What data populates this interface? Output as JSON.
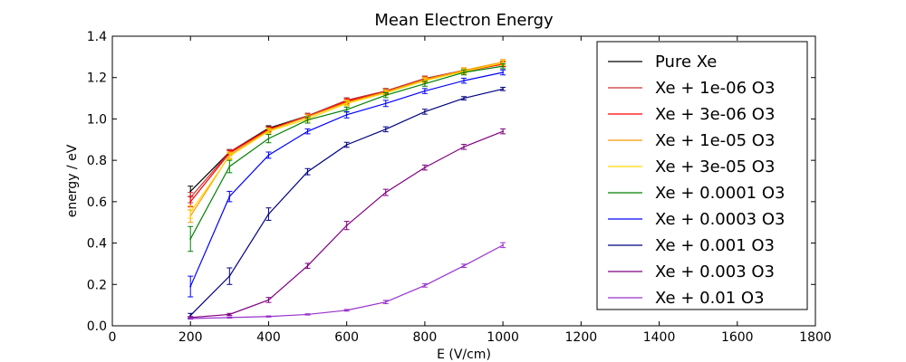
{
  "chart_data": {
    "type": "line",
    "title": "Mean Electron Energy",
    "xlabel": "E (V/cm)",
    "ylabel": "energy / eV",
    "xlim": [
      0,
      1800
    ],
    "ylim": [
      0.0,
      1.4
    ],
    "x_ticks": [
      "0",
      "200",
      "400",
      "600",
      "800",
      "1000",
      "1200",
      "1400",
      "1600",
      "1800"
    ],
    "y_ticks": [
      "0.0",
      "0.2",
      "0.4",
      "0.6",
      "0.8",
      "1.0",
      "1.2",
      "1.4"
    ],
    "grid": false,
    "legend_position": "top-right",
    "x": [
      200,
      300,
      400,
      500,
      600,
      700,
      800,
      900,
      1000
    ],
    "series": [
      {
        "name": "Pure Xe",
        "color": "#000000",
        "values": [
          0.65,
          0.84,
          0.955,
          1.015,
          1.09,
          1.135,
          1.195,
          1.235,
          1.265
        ],
        "errors": [
          0.025,
          0.012,
          0.012,
          0.012,
          0.012,
          0.012,
          0.012,
          0.012,
          0.012
        ]
      },
      {
        "name": "Xe + 1e-06 O3",
        "color": "#cc3333",
        "values": [
          0.62,
          0.84,
          0.95,
          1.015,
          1.09,
          1.135,
          1.195,
          1.235,
          1.265
        ],
        "errors": [
          0.025,
          0.012,
          0.012,
          0.012,
          0.012,
          0.012,
          0.012,
          0.012,
          0.012
        ]
      },
      {
        "name": "Xe + 3e-06 O3",
        "color": "#ff0000",
        "values": [
          0.6,
          0.835,
          0.95,
          1.01,
          1.085,
          1.13,
          1.19,
          1.23,
          1.265
        ],
        "errors": [
          0.025,
          0.012,
          0.012,
          0.012,
          0.012,
          0.012,
          0.012,
          0.012,
          0.012
        ]
      },
      {
        "name": "Xe + 1e-05 O3",
        "color": "#ff9900",
        "values": [
          0.53,
          0.825,
          0.945,
          1.01,
          1.08,
          1.13,
          1.19,
          1.235,
          1.275
        ],
        "errors": [
          0.03,
          0.015,
          0.012,
          0.012,
          0.012,
          0.012,
          0.012,
          0.012,
          0.012
        ]
      },
      {
        "name": "Xe + 3e-05 O3",
        "color": "#ffd700",
        "values": [
          0.55,
          0.82,
          0.94,
          1.0,
          1.075,
          1.125,
          1.185,
          1.23,
          1.27
        ],
        "errors": [
          0.03,
          0.015,
          0.012,
          0.012,
          0.012,
          0.012,
          0.012,
          0.012,
          0.012
        ]
      },
      {
        "name": "Xe + 0.0001 O3",
        "color": "#008000",
        "values": [
          0.42,
          0.77,
          0.905,
          0.995,
          1.045,
          1.115,
          1.17,
          1.225,
          1.255
        ],
        "errors": [
          0.06,
          0.03,
          0.02,
          0.015,
          0.012,
          0.012,
          0.012,
          0.012,
          0.012
        ]
      },
      {
        "name": "Xe + 0.0003 O3",
        "color": "#0000ff",
        "values": [
          0.19,
          0.625,
          0.825,
          0.94,
          1.02,
          1.075,
          1.135,
          1.185,
          1.225
        ],
        "errors": [
          0.05,
          0.025,
          0.015,
          0.012,
          0.015,
          0.015,
          0.012,
          0.012,
          0.012
        ]
      },
      {
        "name": "Xe + 0.001 O3",
        "color": "#000080",
        "values": [
          0.05,
          0.24,
          0.54,
          0.745,
          0.875,
          0.95,
          1.035,
          1.1,
          1.145
        ],
        "errors": [
          0.01,
          0.04,
          0.03,
          0.015,
          0.012,
          0.012,
          0.012,
          0.008,
          0.008
        ]
      },
      {
        "name": "Xe + 0.003 O3",
        "color": "#800080",
        "values": [
          0.04,
          0.055,
          0.125,
          0.29,
          0.485,
          0.645,
          0.765,
          0.865,
          0.94
        ],
        "errors": [
          0.005,
          0.005,
          0.012,
          0.012,
          0.02,
          0.015,
          0.012,
          0.012,
          0.012
        ]
      },
      {
        "name": "Xe + 0.01 O3",
        "color": "#9933cc",
        "values": [
          0.035,
          0.04,
          0.045,
          0.055,
          0.075,
          0.115,
          0.195,
          0.29,
          0.39
        ],
        "errors": [
          0.003,
          0.003,
          0.003,
          0.003,
          0.004,
          0.008,
          0.008,
          0.008,
          0.012
        ]
      }
    ]
  }
}
